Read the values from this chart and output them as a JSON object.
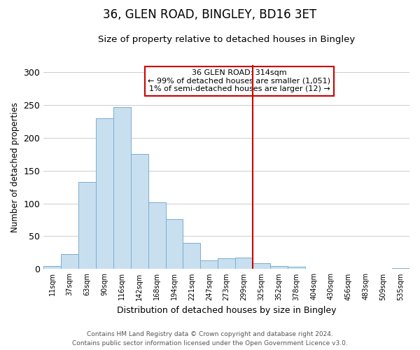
{
  "title": "36, GLEN ROAD, BINGLEY, BD16 3ET",
  "subtitle": "Size of property relative to detached houses in Bingley",
  "xlabel": "Distribution of detached houses by size in Bingley",
  "ylabel": "Number of detached properties",
  "bar_labels": [
    "11sqm",
    "37sqm",
    "63sqm",
    "90sqm",
    "116sqm",
    "142sqm",
    "168sqm",
    "194sqm",
    "221sqm",
    "247sqm",
    "273sqm",
    "299sqm",
    "325sqm",
    "352sqm",
    "378sqm",
    "404sqm",
    "430sqm",
    "456sqm",
    "483sqm",
    "509sqm",
    "535sqm"
  ],
  "bar_values": [
    5,
    23,
    132,
    229,
    246,
    175,
    102,
    76,
    40,
    13,
    16,
    18,
    9,
    5,
    4,
    0,
    0,
    0,
    0,
    0,
    2
  ],
  "bar_color": "#c8dff0",
  "bar_edge_color": "#7aaece",
  "highlight_bar_index": 12,
  "highlight_bar_value": 9,
  "vline_position": 11.5,
  "vline_color": "#cc0000",
  "annotation_title": "36 GLEN ROAD: 314sqm",
  "annotation_line1": "← 99% of detached houses are smaller (1,051)",
  "annotation_line2": "1% of semi-detached houses are larger (12) →",
  "ylim": [
    0,
    310
  ],
  "yticks": [
    0,
    50,
    100,
    150,
    200,
    250,
    300
  ],
  "background_color": "#ffffff",
  "grid_color": "#cccccc",
  "footer_line1": "Contains HM Land Registry data © Crown copyright and database right 2024.",
  "footer_line2": "Contains public sector information licensed under the Open Government Licence v3.0."
}
